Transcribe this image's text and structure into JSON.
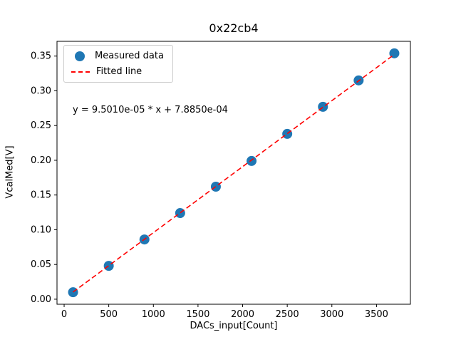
{
  "chart_data": {
    "type": "scatter",
    "title": "0x22cb4",
    "xlabel": "DACs_input[Count]",
    "ylabel": "VcalMed[V]",
    "x": [
      100,
      500,
      900,
      1300,
      1700,
      2100,
      2500,
      2900,
      3300,
      3700
    ],
    "y": [
      0.01,
      0.048,
      0.086,
      0.124,
      0.162,
      0.199,
      0.238,
      0.277,
      0.315,
      0.354
    ],
    "marker_color": "#1f77b4",
    "fit": {
      "slope": 9.501e-05,
      "intercept": 0.0007885,
      "color": "#ff0000"
    },
    "annotation": "y = 9.5010e-05 * x + 7.8850e-04",
    "legend": [
      {
        "label": "Measured data",
        "marker": "circle",
        "color": "#1f77b4"
      },
      {
        "label": "Fitted line",
        "marker": "dashed-line",
        "color": "#ff0000"
      }
    ],
    "xlim": [
      -80,
      3880
    ],
    "ylim": [
      -0.00725,
      0.37125
    ],
    "xticks": [
      "0",
      "500",
      "1000",
      "1500",
      "2000",
      "2500",
      "3000",
      "3500"
    ],
    "yticks": [
      "0.00",
      "0.05",
      "0.10",
      "0.15",
      "0.20",
      "0.25",
      "0.30",
      "0.35"
    ],
    "grid": false,
    "legend_position": "upper-left"
  }
}
